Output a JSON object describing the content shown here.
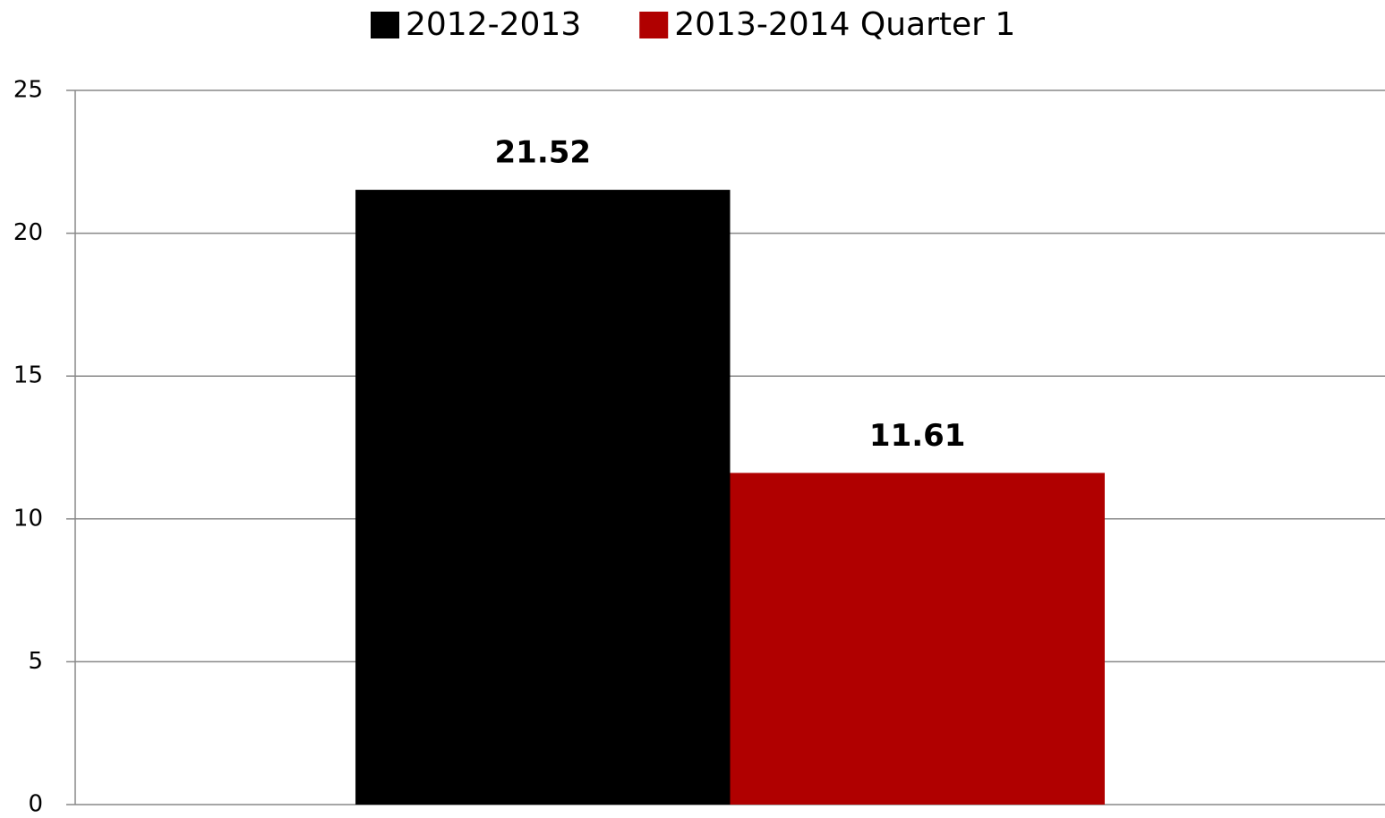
{
  "chart_data": {
    "type": "bar",
    "categories": [
      null
    ],
    "series": [
      {
        "name": "2012-2013",
        "color": "#000000",
        "values": [
          21.52
        ]
      },
      {
        "name": "2013-2014 Quarter 1",
        "color": "#b00000",
        "values": [
          11.61
        ]
      }
    ],
    "ylim": [
      0,
      25
    ],
    "yticks": [
      0,
      5,
      10,
      15,
      20,
      25
    ],
    "grid": true,
    "legend": "top"
  }
}
